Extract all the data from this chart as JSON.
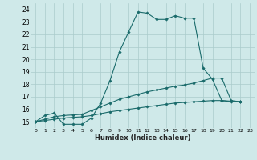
{
  "xlabel": "Humidex (Indice chaleur)",
  "xlim": [
    -0.5,
    23.5
  ],
  "ylim": [
    14.5,
    24.5
  ],
  "yticks": [
    15,
    16,
    17,
    18,
    19,
    20,
    21,
    22,
    23,
    24
  ],
  "xticks": [
    0,
    1,
    2,
    3,
    4,
    5,
    6,
    7,
    8,
    9,
    10,
    11,
    12,
    13,
    14,
    15,
    16,
    17,
    18,
    19,
    20,
    21,
    22,
    23
  ],
  "background_color": "#cfe9e9",
  "grid_color": "#aacccc",
  "line_color": "#1a6b6b",
  "series": [
    {
      "x": [
        0,
        1,
        2,
        3,
        4,
        5,
        6,
        7,
        8,
        9,
        10,
        11,
        12,
        13,
        14,
        15,
        16,
        17,
        18,
        19,
        20,
        21,
        22
      ],
      "y": [
        15.0,
        15.5,
        15.7,
        14.8,
        14.8,
        14.8,
        15.3,
        16.5,
        18.3,
        20.6,
        22.2,
        23.8,
        23.7,
        23.2,
        23.2,
        23.5,
        23.3,
        23.3,
        19.3,
        18.4,
        16.7,
        16.6,
        16.6
      ]
    },
    {
      "x": [
        0,
        1,
        2,
        3,
        4,
        5,
        6,
        7,
        8,
        9,
        10,
        11,
        12,
        13,
        14,
        15,
        16,
        17,
        18,
        19,
        20,
        21,
        22
      ],
      "y": [
        15.0,
        15.2,
        15.4,
        15.5,
        15.55,
        15.6,
        15.9,
        16.2,
        16.5,
        16.8,
        17.0,
        17.2,
        17.4,
        17.55,
        17.7,
        17.85,
        17.95,
        18.1,
        18.3,
        18.5,
        18.5,
        16.7,
        16.6
      ]
    },
    {
      "x": [
        0,
        1,
        2,
        3,
        4,
        5,
        6,
        7,
        8,
        9,
        10,
        11,
        12,
        13,
        14,
        15,
        16,
        17,
        18,
        19,
        20,
        21,
        22
      ],
      "y": [
        15.0,
        15.1,
        15.2,
        15.3,
        15.35,
        15.4,
        15.5,
        15.65,
        15.8,
        15.9,
        16.0,
        16.1,
        16.2,
        16.3,
        16.4,
        16.5,
        16.55,
        16.6,
        16.65,
        16.7,
        16.7,
        16.65,
        16.6
      ]
    }
  ]
}
